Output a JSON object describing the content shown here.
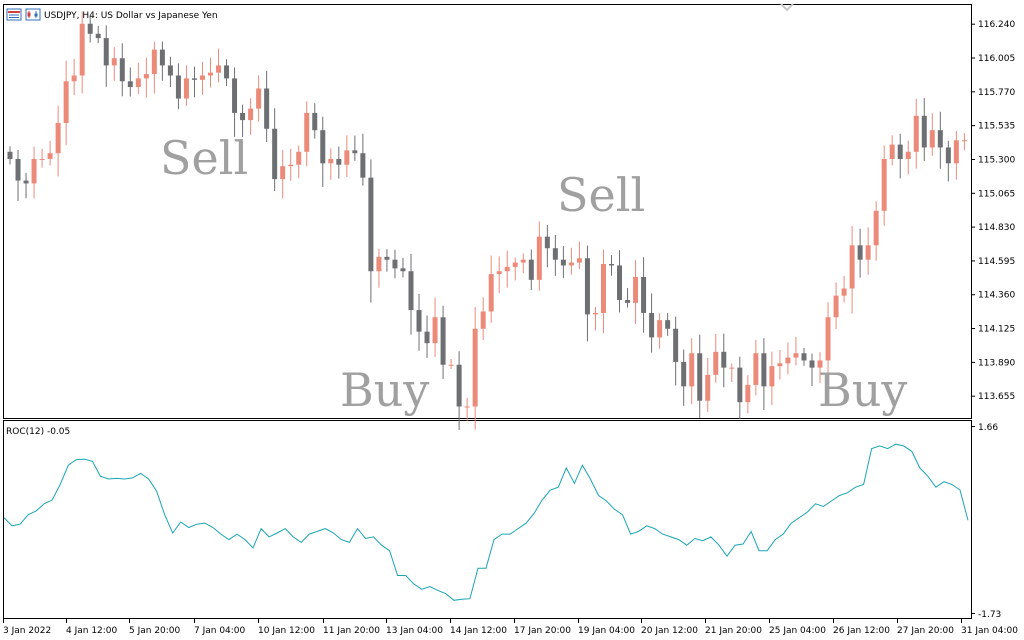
{
  "header": {
    "symbol_label": "USDJPY, H4:  US Dollar vs Japanese Yen"
  },
  "indicator": {
    "label": "ROC(12) -0.05",
    "top_label": "1.66",
    "bottom_label": "-1.73"
  },
  "annotations": [
    "Sell",
    "Sell",
    "Buy",
    "Buy"
  ],
  "colors": {
    "bull": "#ec8a7a",
    "bear": "#6d6f72",
    "roc": "#1aa5b5",
    "frame": "#000000"
  },
  "chart_data": [
    {
      "type": "candlestick",
      "title": "USDJPY, H4:  US Dollar vs Japanese Yen",
      "ylim": [
        113.5,
        116.37
      ],
      "y_ticks": [
        "116.240",
        "116.005",
        "115.770",
        "115.535",
        "115.300",
        "115.065",
        "114.830",
        "114.595",
        "114.360",
        "114.125",
        "113.890",
        "113.655"
      ],
      "x_ticks": [
        "3 Jan 2022",
        "4 Jan 12:00",
        "5 Jan 20:00",
        "7 Jan 04:00",
        "10 Jan 12:00",
        "11 Jan 20:00",
        "13 Jan 04:00",
        "14 Jan 12:00",
        "17 Jan 20:00",
        "19 Jan 04:00",
        "20 Jan 12:00",
        "21 Jan 20:00",
        "25 Jan 04:00",
        "26 Jan 12:00",
        "27 Jan 20:00",
        "31 Jan 04:00"
      ],
      "closes": [
        115.3,
        115.15,
        115.13,
        115.3,
        115.3,
        115.34,
        115.55,
        115.84,
        115.88,
        116.24,
        116.17,
        116.14,
        115.95,
        116.0,
        115.84,
        115.8,
        115.86,
        115.89,
        116.06,
        115.95,
        115.88,
        115.72,
        115.86,
        115.85,
        115.88,
        115.9,
        115.95,
        115.86,
        115.62,
        115.57,
        115.65,
        115.79,
        115.51,
        115.16,
        115.25,
        115.26,
        115.35,
        115.62,
        115.5,
        115.27,
        115.3,
        115.26,
        115.36,
        115.34,
        115.17,
        114.52,
        114.62,
        114.6,
        114.54,
        114.52,
        114.25,
        114.1,
        114.02,
        114.2,
        113.87,
        113.87,
        113.58,
        113.58,
        114.12,
        114.24,
        114.5,
        114.52,
        114.55,
        114.58,
        114.6,
        114.46,
        114.76,
        114.68,
        114.6,
        114.56,
        114.58,
        114.61,
        114.22,
        114.23,
        114.57,
        114.56,
        114.32,
        114.3,
        114.48,
        114.23,
        114.06,
        114.18,
        114.12,
        113.89,
        113.72,
        113.95,
        113.62,
        113.8,
        113.96,
        113.85,
        113.85,
        113.61,
        113.73,
        113.95,
        113.72,
        113.86,
        113.88,
        113.92,
        113.95,
        113.9,
        113.85,
        113.9,
        114.2,
        114.35,
        114.4,
        114.7,
        114.6,
        114.7,
        114.94,
        115.3,
        115.4,
        115.3,
        115.35,
        115.6,
        115.38,
        115.5,
        115.38,
        115.27,
        115.43,
        115.43,
        115.42
      ]
    },
    {
      "type": "line",
      "title": "ROC(12) -0.05",
      "ylim": [
        -1.73,
        1.66
      ],
      "values": [
        0.0,
        -0.15,
        -0.12,
        0.05,
        0.12,
        0.25,
        0.32,
        0.6,
        0.95,
        1.05,
        1.06,
        1.02,
        0.75,
        0.7,
        0.71,
        0.7,
        0.72,
        0.8,
        0.7,
        0.48,
        0.05,
        -0.28,
        -0.08,
        -0.18,
        -0.12,
        -0.1,
        -0.18,
        -0.3,
        -0.4,
        -0.3,
        -0.4,
        -0.55,
        -0.2,
        -0.35,
        -0.28,
        -0.2,
        -0.35,
        -0.45,
        -0.3,
        -0.25,
        -0.2,
        -0.28,
        -0.4,
        -0.45,
        -0.2,
        -0.38,
        -0.35,
        -0.5,
        -0.6,
        -1.05,
        -1.05,
        -1.2,
        -1.3,
        -1.25,
        -1.32,
        -1.38,
        -1.5,
        -1.48,
        -1.47,
        -0.92,
        -0.92,
        -0.4,
        -0.3,
        -0.3,
        -0.2,
        -0.1,
        0.08,
        0.32,
        0.5,
        0.55,
        0.9,
        0.62,
        0.95,
        0.7,
        0.4,
        0.3,
        0.15,
        0.05,
        -0.3,
        -0.25,
        -0.15,
        -0.2,
        -0.3,
        -0.35,
        -0.4,
        -0.5,
        -0.38,
        -0.42,
        -0.35,
        -0.5,
        -0.7,
        -0.5,
        -0.48,
        -0.25,
        -0.6,
        -0.6,
        -0.4,
        -0.3,
        -0.1,
        0.0,
        0.1,
        0.25,
        0.2,
        0.3,
        0.4,
        0.45,
        0.55,
        0.6,
        1.25,
        1.3,
        1.25,
        1.33,
        1.3,
        1.2,
        0.9,
        0.75,
        0.55,
        0.65,
        0.6,
        0.5,
        -0.05
      ]
    }
  ]
}
